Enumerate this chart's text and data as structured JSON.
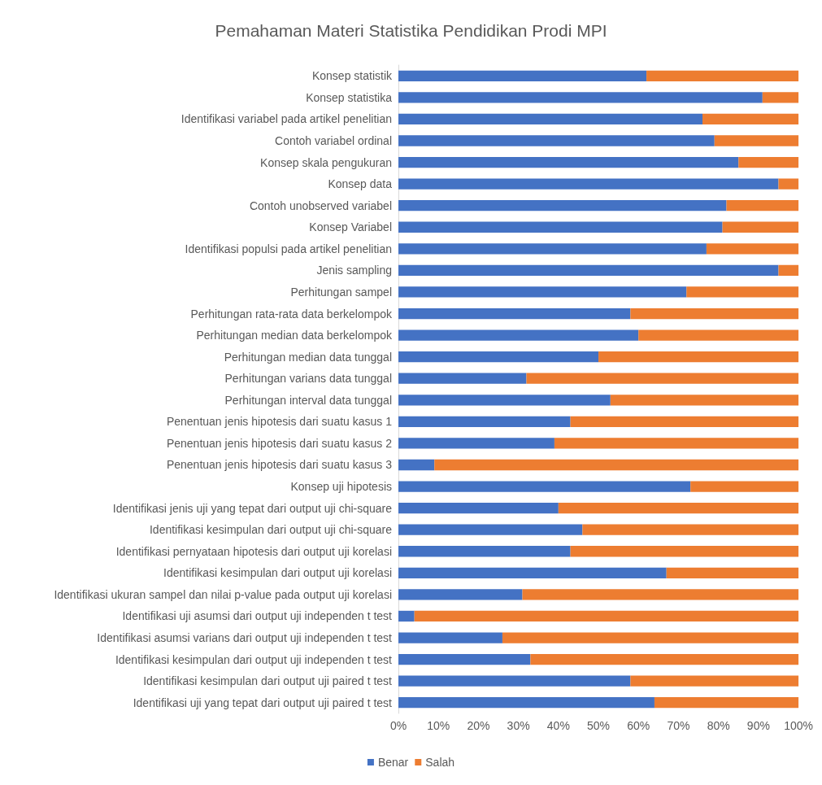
{
  "chart_data": {
    "type": "bar",
    "orientation": "horizontal",
    "stacked": true,
    "title": "Pemahaman Materi Statistika Pendidikan Prodi MPI",
    "categories": [
      "Konsep statistik",
      "Konsep statistika",
      "Identifikasi variabel pada artikel penelitian",
      "Contoh variabel ordinal",
      "Konsep skala pengukuran",
      "Konsep data",
      "Contoh unobserved variabel",
      "Konsep Variabel",
      "Identifikasi populsi pada artikel penelitian",
      "Jenis sampling",
      "Perhitungan sampel",
      "Perhitungan rata-rata data berkelompok",
      "Perhitungan median data berkelompok",
      "Perhitungan median data tunggal",
      "Perhitungan varians data tunggal",
      "Perhitungan interval data tunggal",
      "Penentuan jenis hipotesis dari suatu kasus 1",
      "Penentuan jenis hipotesis dari suatu kasus 2",
      "Penentuan jenis hipotesis dari suatu kasus 3",
      "Konsep uji hipotesis",
      "Identifikasi jenis uji yang tepat dari output uji chi-square",
      "Identifikasi kesimpulan dari output uji chi-square",
      "Identifikasi pernyataan hipotesis dari output uji korelasi",
      "Identifikasi kesimpulan dari output uji korelasi",
      "Identifikasi ukuran sampel dan nilai p-value pada output uji korelasi",
      "Identifikasi uji asumsi dari output uji independen t test",
      "Identifikasi asumsi varians dari output uji independen t test",
      "Identifikasi kesimpulan dari output uji independen t test",
      "Identifikasi kesimpulan dari output uji paired t test",
      "Identifikasi uji yang tepat dari output uji paired t test"
    ],
    "series": [
      {
        "name": "Benar",
        "color": "#4472c4",
        "values": [
          62,
          91,
          76,
          79,
          85,
          95,
          82,
          81,
          77,
          95,
          72,
          58,
          60,
          50,
          32,
          53,
          43,
          39,
          9,
          73,
          40,
          46,
          43,
          67,
          31,
          4,
          26,
          33,
          58,
          64
        ]
      },
      {
        "name": "Salah",
        "color": "#ed7d31",
        "values": [
          38,
          9,
          24,
          21,
          15,
          5,
          18,
          19,
          23,
          5,
          28,
          42,
          40,
          50,
          68,
          47,
          57,
          61,
          91,
          27,
          60,
          54,
          57,
          33,
          69,
          96,
          74,
          67,
          42,
          36
        ]
      }
    ],
    "xlim": [
      0,
      100
    ],
    "xticks": [
      {
        "value": 0,
        "label": "0%"
      },
      {
        "value": 10,
        "label": "10%"
      },
      {
        "value": 20,
        "label": "20%"
      },
      {
        "value": 30,
        "label": "30%"
      },
      {
        "value": 40,
        "label": "40%"
      },
      {
        "value": 50,
        "label": "50%"
      },
      {
        "value": 60,
        "label": "60%"
      },
      {
        "value": 70,
        "label": "70%"
      },
      {
        "value": 80,
        "label": "80%"
      },
      {
        "value": 90,
        "label": "90%"
      },
      {
        "value": 100,
        "label": "100%"
      }
    ],
    "grid": false,
    "legend": "bottom"
  }
}
